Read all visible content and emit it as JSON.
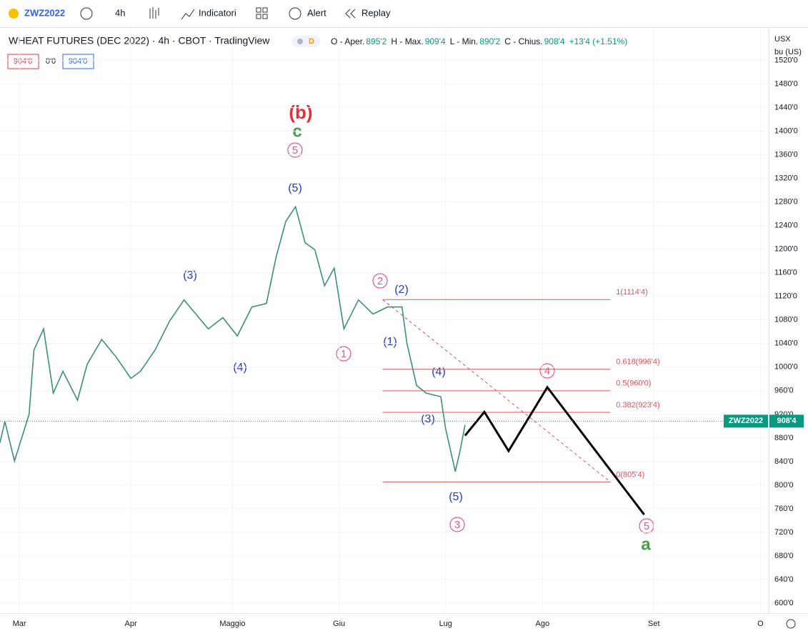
{
  "toolbar": {
    "symbol": "ZWZ2022",
    "interval": "4h",
    "indicators": "Indicatori",
    "alert": "Alert",
    "replay": "Replay"
  },
  "header": {
    "title": "WHEAT FUTURES (DEC 2022) · 4h · CBOT · TradingView",
    "badge": "D",
    "ohlc": [
      {
        "label": "O - Aper.",
        "value": "895'2"
      },
      {
        "label": "H - Max.",
        "value": "909'4"
      },
      {
        "label": "L - Min.",
        "value": "890'2"
      },
      {
        "label": "C - Chius.",
        "value": "908'4"
      }
    ],
    "change": "+13'4 (+1.51%)",
    "bid": "904'0",
    "spread": "0'0",
    "ask": "904'0"
  },
  "currency": "USX",
  "unit": "bu (US)",
  "chart_data": {
    "type": "line",
    "x": [
      -4,
      -3,
      -1,
      2,
      3,
      5,
      7,
      9,
      12,
      14,
      17,
      20,
      23,
      25,
      28,
      31,
      34,
      39,
      42,
      45,
      48,
      51,
      53,
      55,
      57,
      59,
      61,
      63,
      65,
      67,
      70,
      73,
      76,
      79,
      80,
      82,
      84,
      87,
      88,
      90,
      91,
      92
    ],
    "values": [
      872,
      908,
      841,
      920,
      1029,
      1065,
      956,
      993,
      944,
      1005,
      1047,
      1017,
      981,
      993,
      1029,
      1078,
      1114,
      1065,
      1084,
      1053,
      1102,
      1108,
      1187,
      1247,
      1272,
      1211,
      1199,
      1138,
      1168,
      1065,
      1114,
      1090,
      1102,
      1102,
      1041,
      969,
      956,
      950,
      896,
      823,
      859,
      902
    ],
    "projection": {
      "x": [
        92,
        96,
        101,
        109,
        129
      ],
      "values": [
        884,
        924,
        858,
        966,
        750
      ]
    },
    "fib": {
      "x": [
        75,
        122
      ],
      "levels": [
        {
          "value": 1114.5,
          "label": "1(1114'4)"
        },
        {
          "value": 996.5,
          "label": "0.618(996'4)"
        },
        {
          "value": 960,
          "label": "0.5(960'0)"
        },
        {
          "value": 923.5,
          "label": "0.382(923'4)"
        },
        {
          "value": 805.5,
          "label": "0(805'4)"
        }
      ]
    },
    "last_price": {
      "value": 908.5,
      "label": "908'4"
    },
    "xlim": [
      -4,
      155
    ],
    "ylim": [
      583,
      1568
    ],
    "xticks": [
      {
        "value": 0,
        "label": "Mar"
      },
      {
        "value": 23,
        "label": "Apr"
      },
      {
        "value": 44,
        "label": "Maggio"
      },
      {
        "value": 66,
        "label": "Giu"
      },
      {
        "value": 88,
        "label": "Lug"
      },
      {
        "value": 108,
        "label": "Ago"
      },
      {
        "value": 131,
        "label": "Set"
      },
      {
        "value": 153,
        "label": "O"
      }
    ],
    "yticks": [
      {
        "value": 1520,
        "label": "1520'0"
      },
      {
        "value": 1480,
        "label": "1480'0"
      },
      {
        "value": 1440,
        "label": "1440'0"
      },
      {
        "value": 1400,
        "label": "1400'0"
      },
      {
        "value": 1360,
        "label": "1360'0"
      },
      {
        "value": 1320,
        "label": "1320'0"
      },
      {
        "value": 1280,
        "label": "1280'0"
      },
      {
        "value": 1240,
        "label": "1240'0"
      },
      {
        "value": 1200,
        "label": "1200'0"
      },
      {
        "value": 1160,
        "label": "1160'0"
      },
      {
        "value": 1120,
        "label": "1120'0"
      },
      {
        "value": 1080,
        "label": "1080'0"
      },
      {
        "value": 1040,
        "label": "1040'0"
      },
      {
        "value": 1000,
        "label": "1000'0"
      },
      {
        "value": 960,
        "label": "960'0"
      },
      {
        "value": 920,
        "label": "920'0"
      },
      {
        "value": 880,
        "label": "880'0"
      },
      {
        "value": 840,
        "label": "840'0"
      },
      {
        "value": 800,
        "label": "800'0"
      },
      {
        "value": 760,
        "label": "760'0"
      },
      {
        "value": 720,
        "label": "720'0"
      },
      {
        "value": 680,
        "label": "680'0"
      },
      {
        "value": 640,
        "label": "640'0"
      },
      {
        "value": 600,
        "label": "600'0"
      }
    ],
    "annotations": [
      "(b)",
      "c",
      "5",
      "(5)",
      "(3)",
      "(4)",
      "1",
      "2",
      "(2)",
      "(1)",
      "(4)",
      "4",
      "(3)",
      "(5)",
      "3",
      "5",
      "a"
    ]
  }
}
